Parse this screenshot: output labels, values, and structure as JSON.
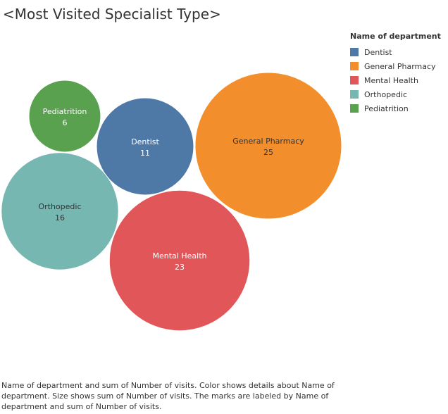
{
  "title": "<Most Visited Specialist Type>",
  "legend": {
    "title": "Name of department",
    "items": [
      {
        "label": "Dentist",
        "color": "#4e79a7"
      },
      {
        "label": "General Pharmacy",
        "color": "#f28e2b"
      },
      {
        "label": "Mental Health",
        "color": "#e15759"
      },
      {
        "label": "Orthopedic",
        "color": "#76b7b2"
      },
      {
        "label": "Pediatrition",
        "color": "#59a14f"
      }
    ]
  },
  "caption": "Name of department and sum of Number of visits.  Color shows details about Name of department.  Size shows sum of Number of visits.  The marks are labeled by Name of department and sum of Number of visits.",
  "chart_data": {
    "type": "packed-bubble",
    "measure": "sum of Number of visits",
    "dimension": "Name of department",
    "points": [
      {
        "name": "Pediatrition",
        "value": 6,
        "color": "#59a14f"
      },
      {
        "name": "Dentist",
        "value": 11,
        "color": "#4e79a7"
      },
      {
        "name": "General Pharmacy",
        "value": 25,
        "color": "#f28e2b"
      },
      {
        "name": "Orthopedic",
        "value": 16,
        "color": "#76b7b2"
      },
      {
        "name": "Mental Health",
        "value": 23,
        "color": "#e15759"
      }
    ]
  }
}
